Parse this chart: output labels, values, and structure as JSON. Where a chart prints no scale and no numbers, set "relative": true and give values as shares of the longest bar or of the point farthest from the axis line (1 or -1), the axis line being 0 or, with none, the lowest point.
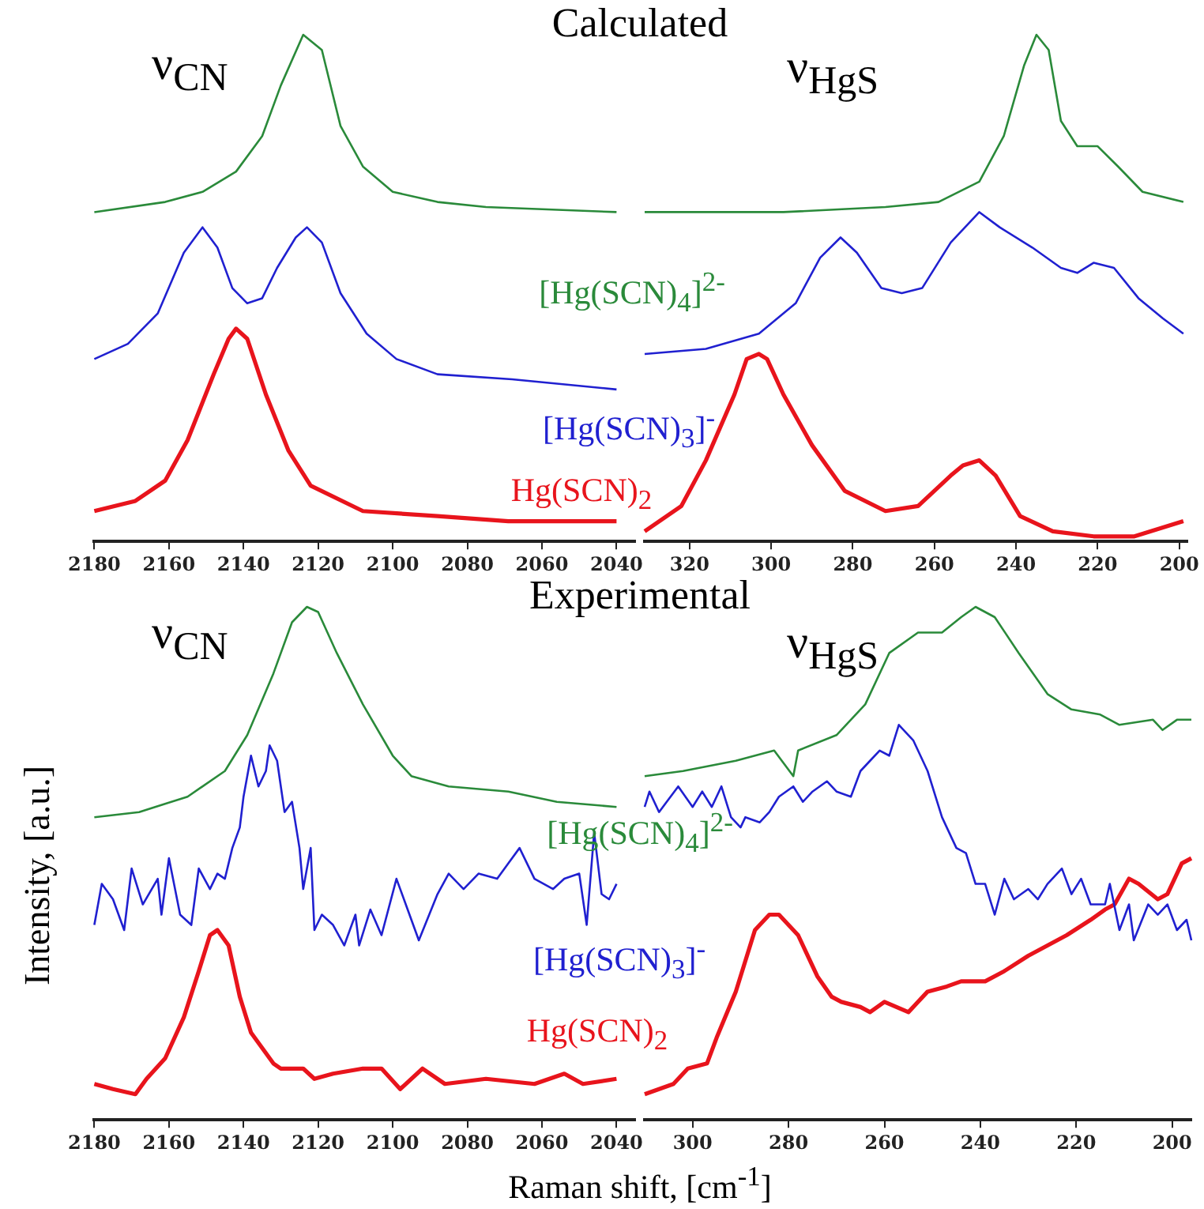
{
  "chart_data": [
    {
      "type": "line",
      "title": "Calculated",
      "relative": true,
      "grid": false,
      "xlim": [
        2180,
        2035
      ],
      "xticks": [
        2180,
        2160,
        2140,
        2120,
        2100,
        2080,
        2060,
        2040
      ],
      "annotations": [
        "ν$_{CN}$"
      ],
      "series": [
        {
          "name": "[Hg(SCN)$_{4}$]$^{2-}$",
          "color": "#2a8a3a",
          "x": [
            2180,
            2161,
            2151,
            2142,
            2135,
            2130,
            2124,
            2119,
            2114,
            2108,
            2100,
            2088,
            2075,
            2040
          ],
          "values": [
            0.65,
            0.67,
            0.69,
            0.73,
            0.8,
            0.9,
            1.0,
            0.97,
            0.82,
            0.74,
            0.69,
            0.67,
            0.66,
            0.65
          ]
        },
        {
          "name": "[Hg(SCN)$_{3}$]$^{-}$",
          "color": "#2020d0",
          "x": [
            2180,
            2171,
            2163,
            2156,
            2151,
            2147,
            2143,
            2139,
            2135,
            2131,
            2126,
            2123,
            2119,
            2114,
            2107,
            2099,
            2088,
            2068,
            2040
          ],
          "values": [
            0.36,
            0.39,
            0.45,
            0.57,
            0.62,
            0.58,
            0.5,
            0.47,
            0.48,
            0.54,
            0.6,
            0.62,
            0.59,
            0.49,
            0.41,
            0.36,
            0.33,
            0.32,
            0.3
          ]
        },
        {
          "name": "Hg(SCN)$_{2}$",
          "color": "#e8141c",
          "x": [
            2180,
            2169,
            2161,
            2155,
            2148,
            2144,
            2142,
            2139,
            2134,
            2128,
            2122,
            2108,
            2088,
            2069,
            2040
          ],
          "values": [
            0.06,
            0.08,
            0.12,
            0.2,
            0.33,
            0.4,
            0.42,
            0.4,
            0.29,
            0.18,
            0.11,
            0.06,
            0.05,
            0.04,
            0.04
          ]
        }
      ]
    },
    {
      "type": "line",
      "relative": true,
      "grid": false,
      "xlim": [
        331,
        198
      ],
      "xticks": [
        320,
        300,
        280,
        260,
        240,
        220,
        200
      ],
      "annotations": [
        "ν$_{HgS}$"
      ],
      "series": [
        {
          "color": "#2a8a3a",
          "x": [
            331,
            297,
            272,
            259,
            249,
            243,
            238,
            235,
            232,
            229,
            225,
            220,
            215,
            209,
            199
          ],
          "values": [
            0.65,
            0.65,
            0.66,
            0.67,
            0.71,
            0.8,
            0.94,
            1.0,
            0.97,
            0.83,
            0.78,
            0.78,
            0.74,
            0.69,
            0.67
          ]
        },
        {
          "color": "#2020d0",
          "x": [
            331,
            316,
            303,
            294,
            288,
            283,
            279,
            273,
            268,
            263,
            256,
            249,
            244,
            236,
            229,
            225,
            221,
            216,
            210,
            204,
            199
          ],
          "values": [
            0.37,
            0.38,
            0.41,
            0.47,
            0.56,
            0.6,
            0.57,
            0.5,
            0.49,
            0.5,
            0.59,
            0.65,
            0.62,
            0.58,
            0.54,
            0.53,
            0.55,
            0.54,
            0.48,
            0.44,
            0.41
          ]
        },
        {
          "color": "#e8141c",
          "x": [
            331,
            322,
            316,
            309,
            306,
            303,
            301,
            297,
            290,
            282,
            272,
            264,
            256,
            253,
            249,
            245,
            239,
            231,
            221,
            211,
            199
          ],
          "values": [
            0.02,
            0.07,
            0.16,
            0.29,
            0.36,
            0.37,
            0.36,
            0.29,
            0.19,
            0.1,
            0.06,
            0.07,
            0.13,
            0.15,
            0.16,
            0.13,
            0.05,
            0.02,
            0.01,
            0.01,
            0.04
          ]
        }
      ]
    },
    {
      "type": "line",
      "title": "Experimental",
      "xlabel": "Raman shift, [cm$^{-1}$]",
      "ylabel": "Intensity, [a.u.]",
      "relative": true,
      "grid": false,
      "xlim": [
        2180,
        2035
      ],
      "xticks": [
        2180,
        2160,
        2140,
        2120,
        2100,
        2080,
        2060,
        2040
      ],
      "annotations": [
        "ν$_{CN}$"
      ],
      "series": [
        {
          "name": "[Hg(SCN)$_{4}$]$^{2-}$",
          "color": "#2a8a3a",
          "x": [
            2180,
            2168,
            2155,
            2145,
            2139,
            2132,
            2127,
            2123,
            2120,
            2115,
            2108,
            2100,
            2095,
            2085,
            2069,
            2056,
            2040
          ],
          "values": [
            0.59,
            0.6,
            0.63,
            0.68,
            0.75,
            0.87,
            0.97,
            1.0,
            0.99,
            0.91,
            0.81,
            0.71,
            0.67,
            0.65,
            0.64,
            0.62,
            0.61
          ]
        },
        {
          "name": "[Hg(SCN)$_{3}$]$^{-}$",
          "color": "#2020d0",
          "x": [
            2180,
            2178,
            2175,
            2172,
            2170,
            2167,
            2163,
            2162,
            2160,
            2157,
            2154,
            2152,
            2149,
            2147,
            2145,
            2143,
            2141,
            2140,
            2138,
            2136,
            2134,
            2133,
            2131,
            2129,
            2127,
            2125,
            2124,
            2122,
            2121,
            2119,
            2116,
            2113,
            2110,
            2109,
            2106,
            2103,
            2099,
            2096,
            2093,
            2088,
            2085,
            2081,
            2077,
            2072,
            2069,
            2066,
            2062,
            2057,
            2054,
            2050,
            2048,
            2046,
            2044,
            2042,
            2040
          ],
          "values": [
            0.38,
            0.46,
            0.43,
            0.37,
            0.49,
            0.42,
            0.47,
            0.4,
            0.51,
            0.4,
            0.38,
            0.49,
            0.45,
            0.48,
            0.47,
            0.53,
            0.57,
            0.63,
            0.71,
            0.65,
            0.68,
            0.73,
            0.7,
            0.6,
            0.62,
            0.53,
            0.45,
            0.53,
            0.37,
            0.4,
            0.38,
            0.34,
            0.4,
            0.34,
            0.41,
            0.36,
            0.47,
            0.41,
            0.35,
            0.44,
            0.48,
            0.45,
            0.48,
            0.47,
            0.5,
            0.53,
            0.47,
            0.45,
            0.47,
            0.48,
            0.38,
            0.56,
            0.44,
            0.43,
            0.46
          ]
        },
        {
          "name": "Hg(SCN)$_{2}$",
          "color": "#e8141c",
          "x": [
            2180,
            2175,
            2169,
            2166,
            2161,
            2156,
            2152,
            2149,
            2147,
            2144,
            2141,
            2138,
            2132,
            2130,
            2124,
            2121,
            2116,
            2108,
            2103,
            2098,
            2092,
            2086,
            2075,
            2062,
            2054,
            2049,
            2040
          ],
          "values": [
            0.07,
            0.06,
            0.05,
            0.08,
            0.12,
            0.2,
            0.29,
            0.36,
            0.37,
            0.34,
            0.24,
            0.17,
            0.11,
            0.1,
            0.1,
            0.08,
            0.09,
            0.1,
            0.1,
            0.06,
            0.1,
            0.07,
            0.08,
            0.07,
            0.09,
            0.07,
            0.08
          ]
        }
      ]
    },
    {
      "type": "line",
      "relative": true,
      "grid": false,
      "xlim": [
        310,
        196
      ],
      "xticks": [
        300,
        280,
        260,
        240,
        220,
        200
      ],
      "annotations": [
        "ν$_{HgS}$"
      ],
      "series": [
        {
          "color": "#2a8a3a",
          "x": [
            310,
            302,
            291,
            283,
            279,
            278,
            270,
            264,
            259,
            253,
            248,
            244,
            241,
            237,
            232,
            226,
            221,
            215,
            211,
            204,
            202,
            199,
            196
          ],
          "values": [
            0.67,
            0.68,
            0.7,
            0.72,
            0.67,
            0.72,
            0.75,
            0.81,
            0.91,
            0.95,
            0.95,
            0.98,
            1.0,
            0.98,
            0.91,
            0.83,
            0.8,
            0.79,
            0.77,
            0.78,
            0.76,
            0.78,
            0.78
          ]
        },
        {
          "color": "#2020d0",
          "x": [
            310,
            309,
            307,
            303,
            300,
            298,
            296,
            294,
            292,
            290,
            289,
            286,
            284,
            282,
            279,
            277,
            275,
            272,
            270,
            267,
            265,
            263,
            261,
            259,
            257,
            254,
            251,
            248,
            245,
            243,
            241,
            239,
            237,
            235,
            233,
            230,
            228,
            226,
            223,
            221,
            219,
            217,
            214,
            213,
            211,
            209,
            208,
            205,
            203,
            201,
            199,
            197,
            196
          ],
          "values": [
            0.61,
            0.64,
            0.6,
            0.65,
            0.61,
            0.64,
            0.61,
            0.65,
            0.59,
            0.57,
            0.59,
            0.58,
            0.6,
            0.63,
            0.65,
            0.62,
            0.64,
            0.66,
            0.64,
            0.63,
            0.68,
            0.7,
            0.72,
            0.71,
            0.77,
            0.74,
            0.68,
            0.59,
            0.53,
            0.52,
            0.46,
            0.46,
            0.4,
            0.47,
            0.43,
            0.45,
            0.43,
            0.46,
            0.49,
            0.44,
            0.47,
            0.42,
            0.42,
            0.46,
            0.37,
            0.42,
            0.35,
            0.42,
            0.4,
            0.42,
            0.37,
            0.39,
            0.35
          ]
        },
        {
          "color": "#e8141c",
          "x": [
            310,
            304,
            301,
            297,
            295,
            291,
            287,
            284,
            282,
            278,
            274,
            271,
            269,
            265,
            263,
            260,
            255,
            251,
            247,
            244,
            239,
            235,
            230,
            226,
            222,
            217,
            214,
            212,
            209,
            207,
            203,
            201,
            198,
            196
          ],
          "values": [
            0.05,
            0.07,
            0.1,
            0.11,
            0.16,
            0.25,
            0.37,
            0.4,
            0.4,
            0.36,
            0.28,
            0.24,
            0.23,
            0.22,
            0.21,
            0.23,
            0.21,
            0.25,
            0.26,
            0.27,
            0.27,
            0.29,
            0.32,
            0.34,
            0.36,
            0.39,
            0.41,
            0.42,
            0.47,
            0.46,
            0.43,
            0.44,
            0.5,
            0.51
          ]
        }
      ]
    }
  ]
}
